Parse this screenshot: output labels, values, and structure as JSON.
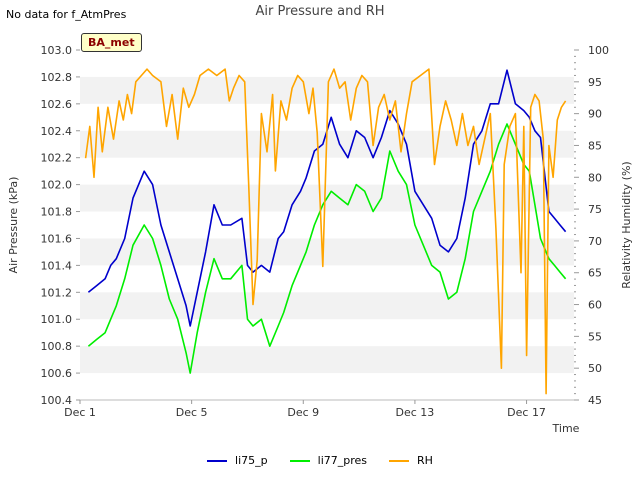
{
  "note": "No data for f_AtmPres",
  "badge": "BA_met",
  "chart_data": {
    "type": "line",
    "title": "Air Pressure and RH",
    "xlabel": "Time",
    "ylabel": "Air Pressure (kPa)",
    "y2label": "Relativity Humidity (%)",
    "xlim": [
      1,
      18.7
    ],
    "ylim": [
      100.4,
      103.0
    ],
    "y2lim": [
      45,
      100
    ],
    "x_ticks": [
      {
        "label": "Dec 1",
        "value": 1
      },
      {
        "label": "Dec 5",
        "value": 5
      },
      {
        "label": "Dec 9",
        "value": 9
      },
      {
        "label": "Dec 13",
        "value": 13
      },
      {
        "label": "Dec 17",
        "value": 17
      }
    ],
    "y_ticks": [
      "100.4",
      "100.6",
      "100.8",
      "101.0",
      "101.2",
      "101.4",
      "101.6",
      "101.8",
      "102.0",
      "102.2",
      "102.4",
      "102.6",
      "102.8",
      "103.0"
    ],
    "y2_ticks": [
      "45",
      "50",
      "55",
      "60",
      "65",
      "70",
      "75",
      "80",
      "85",
      "90",
      "95",
      "100"
    ],
    "grid": "alternating horizontal bands",
    "legend_position": "bottom",
    "series": [
      {
        "name": "li75_p",
        "axis": "left",
        "color": "#0000cc",
        "x": [
          1.3,
          1.6,
          1.9,
          2.1,
          2.3,
          2.6,
          2.9,
          3.3,
          3.6,
          3.9,
          4.2,
          4.5,
          4.8,
          4.95,
          5.2,
          5.5,
          5.8,
          6.1,
          6.4,
          6.8,
          7.0,
          7.2,
          7.5,
          7.8,
          8.1,
          8.3,
          8.6,
          8.9,
          9.1,
          9.4,
          9.7,
          10.0,
          10.3,
          10.6,
          10.9,
          11.2,
          11.5,
          11.8,
          12.1,
          12.4,
          12.7,
          13.0,
          13.3,
          13.6,
          13.9,
          14.2,
          14.5,
          14.8,
          15.1,
          15.4,
          15.7,
          16.0,
          16.3,
          16.6,
          16.9,
          17.1,
          17.3,
          17.5,
          17.8,
          18.0,
          18.2,
          18.4
        ],
        "y": [
          101.2,
          101.25,
          101.3,
          101.4,
          101.45,
          101.6,
          101.9,
          102.1,
          102.0,
          101.7,
          101.5,
          101.3,
          101.1,
          100.95,
          101.2,
          101.5,
          101.85,
          101.7,
          101.7,
          101.75,
          101.4,
          101.35,
          101.4,
          101.35,
          101.6,
          101.65,
          101.85,
          101.95,
          102.05,
          102.25,
          102.3,
          102.5,
          102.3,
          102.2,
          102.4,
          102.35,
          102.2,
          102.35,
          102.55,
          102.45,
          102.3,
          101.95,
          101.85,
          101.75,
          101.55,
          101.5,
          101.6,
          101.9,
          102.3,
          102.4,
          102.6,
          102.6,
          102.85,
          102.6,
          102.55,
          102.5,
          102.4,
          102.35,
          101.8,
          101.75,
          101.7,
          101.65
        ]
      },
      {
        "name": "li77_pres",
        "axis": "left",
        "color": "#00ee00",
        "x": [
          1.3,
          1.6,
          1.9,
          2.1,
          2.3,
          2.6,
          2.9,
          3.3,
          3.6,
          3.9,
          4.2,
          4.5,
          4.8,
          4.95,
          5.2,
          5.5,
          5.8,
          6.1,
          6.4,
          6.8,
          7.0,
          7.2,
          7.5,
          7.8,
          8.1,
          8.3,
          8.6,
          8.9,
          9.1,
          9.4,
          9.7,
          10.0,
          10.3,
          10.6,
          10.9,
          11.2,
          11.5,
          11.8,
          12.1,
          12.4,
          12.7,
          13.0,
          13.3,
          13.6,
          13.9,
          14.2,
          14.5,
          14.8,
          15.1,
          15.4,
          15.7,
          16.0,
          16.3,
          16.6,
          16.9,
          17.1,
          17.3,
          17.5,
          17.8,
          18.0,
          18.2,
          18.4
        ],
        "y": [
          100.8,
          100.85,
          100.9,
          101.0,
          101.1,
          101.3,
          101.55,
          101.7,
          101.6,
          101.4,
          101.15,
          101.0,
          100.75,
          100.6,
          100.9,
          101.2,
          101.45,
          101.3,
          101.3,
          101.4,
          101.0,
          100.95,
          101.0,
          100.8,
          100.95,
          101.05,
          101.25,
          101.4,
          101.5,
          101.7,
          101.85,
          101.95,
          101.9,
          101.85,
          102.0,
          101.95,
          101.8,
          101.9,
          102.25,
          102.1,
          102.0,
          101.7,
          101.55,
          101.4,
          101.35,
          101.15,
          101.2,
          101.45,
          101.8,
          101.95,
          102.1,
          102.3,
          102.45,
          102.3,
          102.15,
          102.1,
          101.85,
          101.6,
          101.45,
          101.4,
          101.35,
          101.3
        ]
      },
      {
        "name": "RH",
        "axis": "right",
        "color": "#ffa500",
        "x": [
          1.2,
          1.35,
          1.5,
          1.65,
          1.8,
          2.0,
          2.2,
          2.4,
          2.55,
          2.7,
          2.85,
          3.0,
          3.2,
          3.4,
          3.6,
          3.9,
          4.1,
          4.3,
          4.5,
          4.7,
          4.9,
          5.1,
          5.3,
          5.6,
          5.9,
          6.2,
          6.35,
          6.5,
          6.7,
          6.9,
          7.05,
          7.2,
          7.35,
          7.5,
          7.7,
          7.9,
          8.0,
          8.2,
          8.4,
          8.6,
          8.8,
          9.0,
          9.2,
          9.35,
          9.5,
          9.7,
          9.9,
          10.1,
          10.3,
          10.5,
          10.7,
          10.9,
          11.1,
          11.3,
          11.5,
          11.7,
          11.9,
          12.1,
          12.3,
          12.5,
          12.7,
          12.9,
          13.2,
          13.5,
          13.7,
          13.9,
          14.1,
          14.3,
          14.5,
          14.7,
          14.9,
          15.1,
          15.3,
          15.5,
          15.7,
          15.9,
          16.1,
          16.2,
          16.4,
          16.6,
          16.8,
          16.9,
          17.0,
          17.15,
          17.3,
          17.45,
          17.6,
          17.7,
          17.8,
          17.95,
          18.1,
          18.25,
          18.4
        ],
        "y": [
          83,
          88,
          80,
          91,
          84,
          91,
          86,
          92,
          89,
          93,
          90,
          95,
          96,
          97,
          96,
          95,
          88,
          93,
          86,
          94,
          91,
          93,
          96,
          97,
          96,
          97,
          92,
          94,
          96,
          95,
          78,
          60,
          67,
          90,
          84,
          93,
          81,
          92,
          89,
          94,
          96,
          95,
          90,
          94,
          87,
          66,
          95,
          97,
          94,
          95,
          89,
          94,
          96,
          95,
          85,
          91,
          93,
          89,
          92,
          84,
          90,
          95,
          96,
          97,
          82,
          88,
          92,
          89,
          85,
          90,
          85,
          88,
          82,
          86,
          90,
          72,
          50,
          82,
          88,
          90,
          65,
          88,
          52,
          91,
          93,
          92,
          86,
          46,
          85,
          80,
          89,
          91,
          92
        ]
      }
    ]
  }
}
